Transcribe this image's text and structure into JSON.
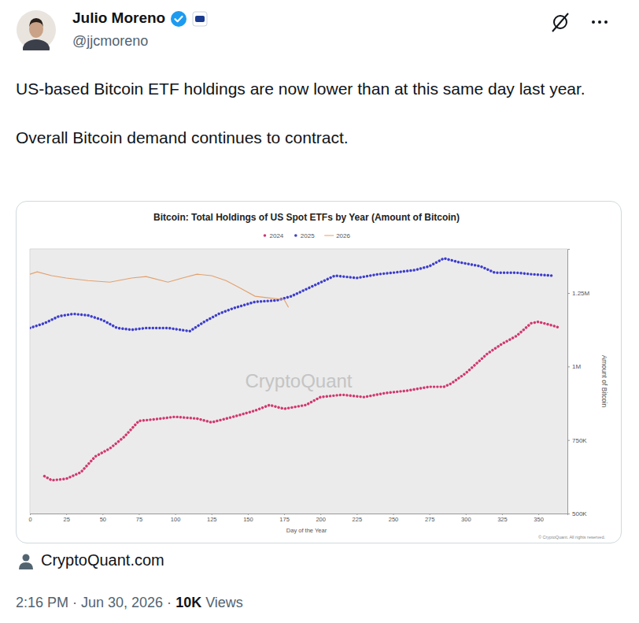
{
  "tweet": {
    "author_name": "Julio Moreno",
    "handle": "@jjcmoreno",
    "text": [
      "US-based Bitcoin ETF holdings are now lower than at this same day last year.",
      "Overall Bitcoin demand continues to contract."
    ],
    "source": "CryptoQuant.com",
    "timestamp": "2:16 PM · Jun 30, 2026 ·",
    "views_count": "10K",
    "views_label": "Views"
  },
  "chart_data": {
    "type": "line",
    "title": "Bitcoin: Total Holdings of US Spot ETFs by Year (Amount of Bitcoin)",
    "xlabel": "Day of the Year",
    "ylabel": "Amount of Bitcoin",
    "watermark": "CryptoQuant",
    "copyright": "© CryptoQuant. All rights reserved.",
    "xlim": [
      0,
      370
    ],
    "xticks": [
      0,
      25,
      50,
      75,
      100,
      125,
      150,
      175,
      200,
      225,
      250,
      275,
      300,
      325,
      350
    ],
    "ylim": [
      500000,
      1400000
    ],
    "yticks": [
      {
        "value": 500000,
        "label": "500K"
      },
      {
        "value": 750000,
        "label": "750K"
      },
      {
        "value": 1000000,
        "label": "1M"
      },
      {
        "value": 1250000,
        "label": "1.25M"
      }
    ],
    "grid": false,
    "legend": "top",
    "series": [
      {
        "name": "2024",
        "color": "#d1386f",
        "marker": "circle",
        "line_style": "dotted",
        "x": [
          10,
          15,
          25,
          35,
          45,
          55,
          65,
          75,
          85,
          100,
          115,
          125,
          140,
          155,
          165,
          175,
          190,
          200,
          215,
          230,
          245,
          260,
          275,
          285,
          290,
          300,
          315,
          325,
          335,
          345,
          350,
          360,
          365
        ],
        "values": [
          627000,
          613000,
          618000,
          640000,
          694000,
          721000,
          761000,
          815000,
          820000,
          829000,
          823000,
          810000,
          829000,
          850000,
          869000,
          856000,
          869000,
          896000,
          904000,
          896000,
          910000,
          918000,
          931000,
          931000,
          942000,
          977000,
          1044000,
          1077000,
          1104000,
          1147000,
          1152000,
          1139000,
          1131000
        ]
      },
      {
        "name": "2025",
        "color": "#3d3dcc",
        "marker": "circle",
        "line_style": "dotted",
        "x": [
          0,
          10,
          20,
          30,
          40,
          50,
          60,
          70,
          80,
          95,
          110,
          120,
          130,
          140,
          155,
          170,
          180,
          195,
          210,
          225,
          240,
          250,
          265,
          275,
          285,
          295,
          310,
          320,
          335,
          345,
          360
        ],
        "values": [
          1131000,
          1147000,
          1171000,
          1179000,
          1174000,
          1158000,
          1131000,
          1125000,
          1131000,
          1131000,
          1120000,
          1152000,
          1179000,
          1198000,
          1220000,
          1225000,
          1239000,
          1274000,
          1309000,
          1301000,
          1314000,
          1319000,
          1328000,
          1341000,
          1368000,
          1355000,
          1341000,
          1319000,
          1319000,
          1314000,
          1309000
        ]
      },
      {
        "name": "2026",
        "color": "#e3a06e",
        "line_style": "solid",
        "x": [
          0,
          5,
          15,
          25,
          40,
          55,
          70,
          80,
          95,
          105,
          115,
          125,
          135,
          145,
          155,
          165,
          175,
          178
        ],
        "values": [
          1314000,
          1322000,
          1309000,
          1301000,
          1292000,
          1287000,
          1301000,
          1306000,
          1287000,
          1301000,
          1314000,
          1309000,
          1292000,
          1266000,
          1239000,
          1233000,
          1228000,
          1201000
        ]
      }
    ]
  }
}
